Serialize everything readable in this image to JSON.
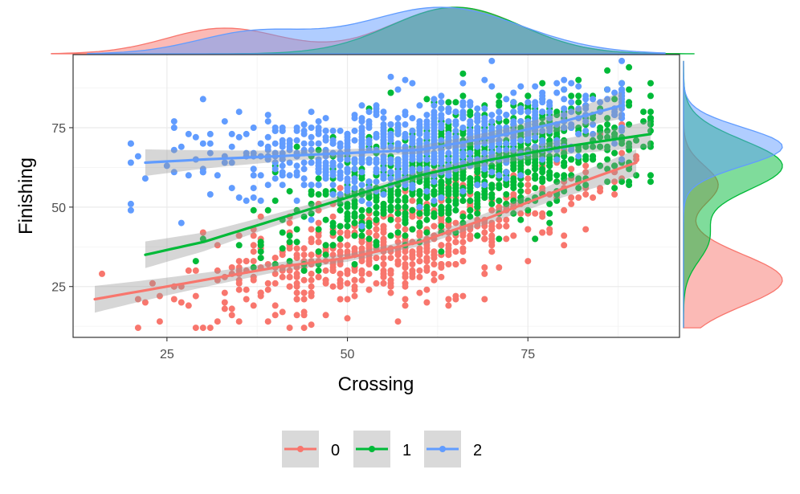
{
  "chart_data": {
    "type": "scatter",
    "title": "",
    "xlabel": "Crossing",
    "ylabel": "Finishing",
    "xlim": [
      12,
      96
    ],
    "ylim": [
      9,
      98
    ],
    "x_ticks": [
      25,
      50,
      75
    ],
    "y_ticks": [
      25,
      50,
      75
    ],
    "x_minor_ticks": [
      37.5,
      62.5,
      87.5
    ],
    "y_minor_ticks": [
      12.5,
      37.5,
      62.5,
      87.5
    ],
    "grid": true,
    "legend_position": "bottom",
    "series": [
      {
        "name": "0",
        "color": "#F8766D",
        "x_range": [
          15,
          90
        ],
        "x_peak": 57,
        "x_spread": 14,
        "y_peak": 29,
        "y_spread": 8,
        "point_count": 700,
        "smooth": [
          [
            15,
            21
          ],
          [
            25,
            25
          ],
          [
            40,
            31
          ],
          [
            50,
            34
          ],
          [
            60,
            39
          ],
          [
            70,
            47
          ],
          [
            80,
            56
          ],
          [
            90,
            64
          ]
        ]
      },
      {
        "name": "1",
        "color": "#00BA38",
        "x_range": [
          22,
          92
        ],
        "x_peak": 67,
        "x_spread": 11,
        "y_peak": 61,
        "y_spread": 9,
        "point_count": 1100,
        "smooth": [
          [
            22,
            35
          ],
          [
            30,
            39
          ],
          [
            40,
            46
          ],
          [
            50,
            53
          ],
          [
            60,
            60
          ],
          [
            70,
            65
          ],
          [
            80,
            69
          ],
          [
            92,
            73
          ]
        ]
      },
      {
        "name": "2",
        "color": "#619CFF",
        "x_range": [
          20,
          88
        ],
        "x_peak": 60,
        "x_spread": 15,
        "y_peak": 68,
        "y_spread": 7,
        "point_count": 800,
        "smooth": [
          [
            22,
            64
          ],
          [
            30,
            65
          ],
          [
            40,
            66
          ],
          [
            50,
            67
          ],
          [
            60,
            68
          ],
          [
            70,
            72
          ],
          [
            80,
            77
          ],
          [
            88,
            82
          ]
        ]
      }
    ]
  }
}
